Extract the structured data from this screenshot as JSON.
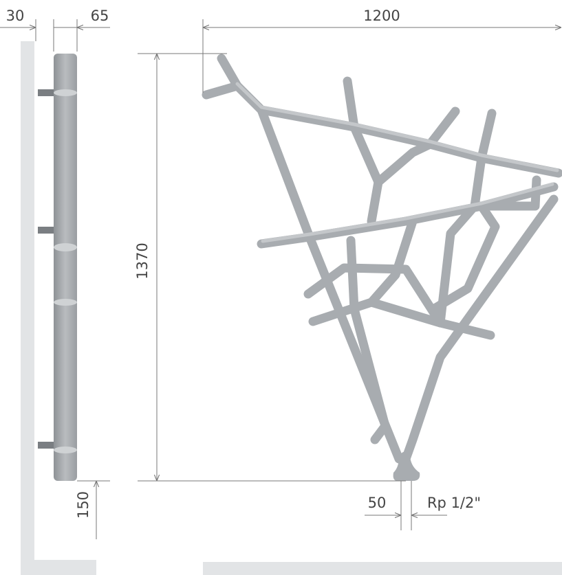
{
  "dimensions": {
    "wall_gap": "30",
    "depth": "65",
    "width": "1200",
    "height": "1370",
    "floor_gap": "150",
    "inlet_spacing": "50",
    "thread": "Rp 1/2\""
  }
}
